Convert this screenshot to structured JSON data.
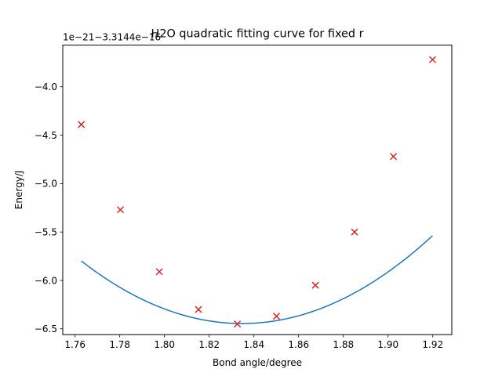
{
  "chart_data": {
    "type": "scatter",
    "title": "H2O quadratic fitting curve for fixed r",
    "xlabel": "Bond angle/degree",
    "ylabel": "Energy/J",
    "offset_text": "1e−21−3.3144e−16",
    "xlim": [
      1.7545,
      1.9285
    ],
    "ylim": [
      -6.56,
      -3.57
    ],
    "x_ticks": [
      1.76,
      1.78,
      1.8,
      1.82,
      1.84,
      1.86,
      1.88,
      1.9,
      1.92
    ],
    "x_tick_labels": [
      "1.76",
      "1.78",
      "1.80",
      "1.82",
      "1.84",
      "1.86",
      "1.88",
      "1.90",
      "1.92"
    ],
    "y_ticks": [
      -6.5,
      -6.0,
      -5.5,
      -5.0,
      -4.5,
      -4.0
    ],
    "y_tick_labels": [
      "−6.5",
      "−6.0",
      "−5.5",
      "−5.0",
      "−4.5",
      "−4.0"
    ],
    "grid": false,
    "series": [
      {
        "kind": "points",
        "marker": "x",
        "color": "#d62728",
        "x": [
          1.7628,
          1.7803,
          1.7977,
          1.8152,
          1.8326,
          1.8501,
          1.8675,
          1.885,
          1.9024,
          1.9199
        ],
        "y": [
          -4.39,
          -5.27,
          -5.91,
          -6.3,
          -6.45,
          -6.37,
          -6.05,
          -5.5,
          -4.72,
          -3.72
        ]
      },
      {
        "kind": "fit",
        "color": "#1f77b4",
        "a": 124.95,
        "h": 1.8347,
        "k": -6.445,
        "x_range": [
          1.7628,
          1.9199
        ]
      }
    ]
  }
}
